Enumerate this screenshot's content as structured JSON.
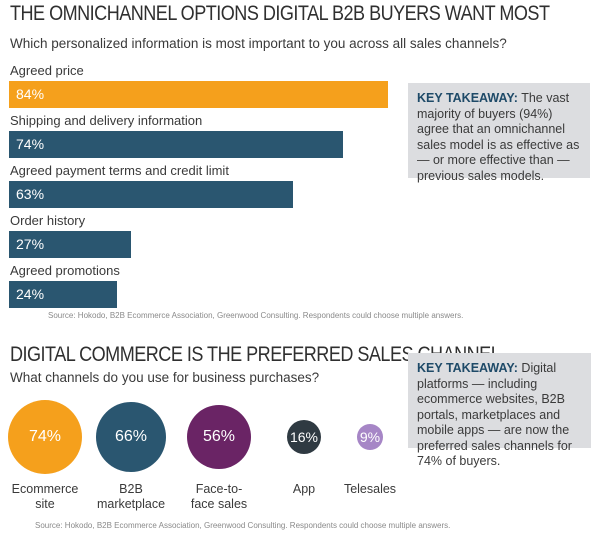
{
  "section1": {
    "title": "THE OMNICHANNEL OPTIONS DIGITAL B2B BUYERS WANT MOST",
    "subtitle": "Which personalized information is most important to you across all sales channels?",
    "source": "Source: Hokodo, B2B Ecommerce Association, Greenwood Consulting. Respondents could choose multiple answers.",
    "takeaway_head": "KEY TAKEAWAY:",
    "takeaway_body": " The vast majority of buyers (94%) agree that an omnichannel sales model is as effective as — or more effective than — previous sales models."
  },
  "section2": {
    "title": "DIGITAL COMMERCE IS THE PREFERRED SALES CHANNEL",
    "subtitle": "What channels do you use for business purchases?",
    "source": "Source: Hokodo, B2B Ecommerce Association, Greenwood Consulting. Respondents could choose multiple answers.",
    "takeaway_head": "KEY TAKEAWAY:",
    "takeaway_body": " Digital platforms — including ecommerce websites, B2B portals, marketplaces and mobile apps — are now the preferred sales channels for 74% of buyers."
  },
  "colors": {
    "orange": "#f5a01c",
    "navy": "#2a5670",
    "purple": "#6a2465",
    "dark": "#2f3a42",
    "lavender": "#a686c6"
  },
  "chart_data": [
    {
      "type": "bar",
      "orientation": "horizontal",
      "categories": [
        "Agreed price",
        "Shipping and delivery information",
        "Agreed payment terms and credit limit",
        "Order history",
        "Agreed promotions"
      ],
      "values": [
        84,
        74,
        63,
        27,
        24
      ],
      "value_labels": [
        "84%",
        "74%",
        "63%",
        "27%",
        "24%"
      ],
      "xlim": [
        0,
        100
      ],
      "colors": [
        "#f5a01c",
        "#2a5670",
        "#2a5670",
        "#2a5670",
        "#2a5670"
      ]
    },
    {
      "type": "bubble",
      "categories": [
        "Ecommerce site",
        "B2B marketplace",
        "Face-to-face sales",
        "App",
        "Telesales"
      ],
      "values": [
        74,
        66,
        56,
        16,
        9
      ],
      "value_labels": [
        "74%",
        "66%",
        "56%",
        "16%",
        "9%"
      ],
      "colors": [
        "#f5a01c",
        "#2a5670",
        "#6a2465",
        "#2f3a42",
        "#a686c6"
      ]
    }
  ]
}
